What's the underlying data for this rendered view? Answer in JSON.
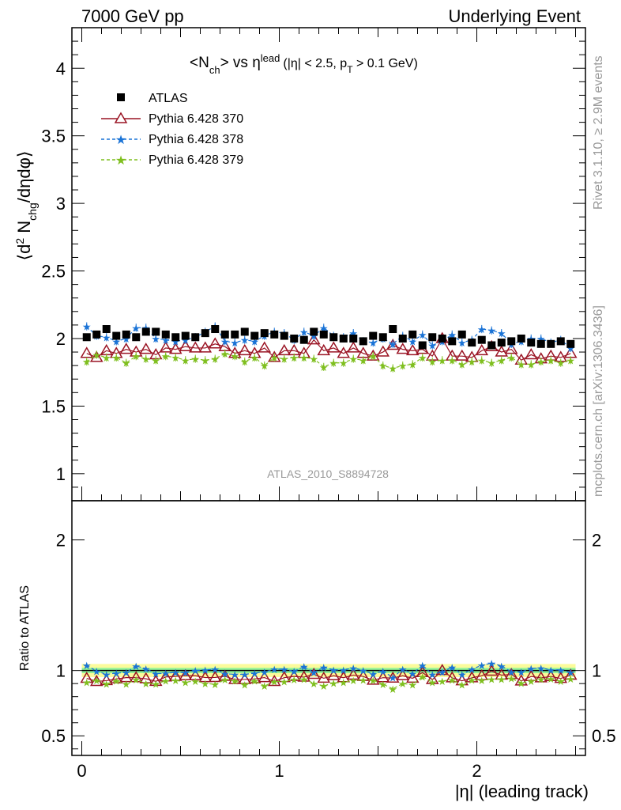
{
  "header": {
    "left": "7000 GeV pp",
    "right": "Underlying Event"
  },
  "plot_title": {
    "main_a": "<N",
    "main_sub": "ch",
    "main_b": "> vs η",
    "main_sup": "lead",
    "cuts_a": "(|η| < 2.5, p",
    "cuts_sub": "T",
    "cuts_b": " > 0.1 GeV)"
  },
  "y_label": {
    "a": "⟨d",
    "sup": "2",
    "b": " N",
    "sub": "chg",
    "c": "/dηdφ⟩"
  },
  "ratio_ylabel": "Ratio to ATLAS",
  "x_label": "|η| (leading track)",
  "right_side": {
    "rivet": "Rivet 3.1.10, ≥ 2.9M events",
    "mcplots": "mcplots.cern.ch [arXiv:1306.3436]"
  },
  "analysis_id": "ATLAS_2010_S8894728",
  "colors": {
    "atlas": "#000000",
    "p370": "#9a1424",
    "p378": "#1a73d6",
    "p379": "#7fbf1f",
    "band_inner": "#8ff29a",
    "band_outer": "#fbfb9b"
  },
  "chart_data": {
    "type": "scatter",
    "x_range": [
      -0.05,
      2.55
    ],
    "main_ylim": [
      0.8,
      4.3
    ],
    "ratio_ylim": [
      0.35,
      2.3
    ],
    "main_yticks": [
      "1",
      "1.5",
      "2",
      "2.5",
      "3",
      "3.5",
      "4"
    ],
    "ratio_yticks": [
      "0.5",
      "1",
      "2"
    ],
    "xticks": [
      "0",
      "1",
      "2"
    ],
    "x": [
      0.025,
      0.075,
      0.125,
      0.175,
      0.225,
      0.275,
      0.325,
      0.375,
      0.425,
      0.475,
      0.525,
      0.575,
      0.625,
      0.675,
      0.725,
      0.775,
      0.825,
      0.875,
      0.925,
      0.975,
      1.025,
      1.075,
      1.125,
      1.175,
      1.225,
      1.275,
      1.325,
      1.375,
      1.425,
      1.475,
      1.525,
      1.575,
      1.625,
      1.675,
      1.725,
      1.775,
      1.825,
      1.875,
      1.925,
      1.975,
      2.025,
      2.075,
      2.125,
      2.175,
      2.225,
      2.275,
      2.325,
      2.375,
      2.425,
      2.475
    ],
    "series": [
      {
        "name": "ATLAS",
        "values": [
          2.01,
          2.03,
          2.07,
          2.02,
          2.03,
          2.01,
          2.05,
          2.05,
          2.03,
          2.01,
          2.02,
          2.01,
          2.04,
          2.07,
          2.03,
          2.03,
          2.05,
          2.02,
          2.04,
          2.03,
          2.02,
          2.0,
          1.99,
          2.05,
          2.03,
          2.01,
          2.0,
          2.0,
          1.98,
          2.02,
          2.01,
          2.07,
          2.0,
          2.03,
          1.95,
          2.01,
          2.0,
          1.98,
          2.03,
          1.97,
          1.99,
          1.95,
          1.97,
          1.98,
          2.0,
          1.97,
          1.96,
          1.96,
          1.98,
          1.96
        ]
      },
      {
        "name": "Pythia 6.428 370",
        "values": [
          1.89,
          1.86,
          1.91,
          1.89,
          1.92,
          1.9,
          1.92,
          1.88,
          1.93,
          1.92,
          1.94,
          1.93,
          1.93,
          1.96,
          1.94,
          1.89,
          1.91,
          1.89,
          1.93,
          1.86,
          1.91,
          1.91,
          1.89,
          1.99,
          1.91,
          1.93,
          1.89,
          1.93,
          1.89,
          1.87,
          1.9,
          1.95,
          1.92,
          1.91,
          1.92,
          1.87,
          2.0,
          1.87,
          1.87,
          1.86,
          1.91,
          1.94,
          1.9,
          1.92,
          1.84,
          1.88,
          1.85,
          1.87,
          1.86,
          1.89
        ]
      },
      {
        "name": "Pythia 6.428 378",
        "values": [
          2.09,
          2.02,
          2.01,
          1.98,
          2.0,
          2.08,
          2.08,
          2.0,
          1.99,
          1.98,
          1.99,
          2.01,
          2.05,
          2.09,
          1.98,
          1.97,
          1.99,
          1.98,
          2.02,
          2.05,
          2.04,
          1.99,
          2.05,
          2.02,
          2.08,
          2.02,
          2.01,
          2.04,
          1.98,
          1.97,
          2.0,
          1.96,
          2.02,
          1.98,
          2.03,
          1.95,
          1.98,
          2.03,
          1.97,
          1.99,
          2.07,
          2.06,
          2.04,
          1.96,
          1.98,
          2.0,
          2.0,
          1.97,
          1.99,
          1.93
        ]
      },
      {
        "name": "Pythia 6.428 379",
        "values": [
          1.83,
          1.88,
          1.86,
          1.86,
          1.82,
          1.87,
          1.85,
          1.84,
          1.87,
          1.86,
          1.84,
          1.85,
          1.84,
          1.85,
          1.89,
          1.87,
          1.83,
          1.86,
          1.8,
          1.86,
          1.85,
          1.86,
          1.86,
          1.85,
          1.79,
          1.82,
          1.82,
          1.85,
          1.84,
          1.87,
          1.8,
          1.78,
          1.8,
          1.81,
          1.86,
          1.83,
          1.84,
          1.84,
          1.81,
          1.83,
          1.84,
          1.82,
          1.84,
          1.86,
          1.81,
          1.81,
          1.83,
          1.84,
          1.82,
          1.84
        ]
      }
    ],
    "error_inner_frac": 0.02,
    "error_outer_frac": 0.05,
    "legend_position": "top-left",
    "grid": false
  }
}
